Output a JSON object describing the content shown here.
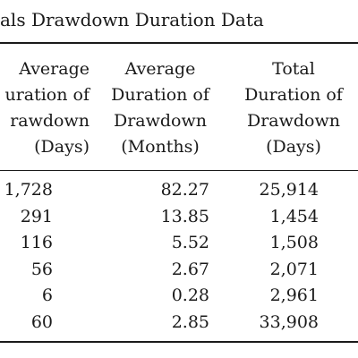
{
  "title": "als Drawdown Duration Data",
  "headers": [
    [
      "Average",
      "uration of",
      "rawdown",
      "(Days)"
    ],
    [
      "Average",
      "Duration of",
      "Drawdown",
      "(Months)"
    ],
    [
      "Total",
      "Duration of",
      "Drawdown",
      "(Days)"
    ]
  ],
  "rows": [
    [
      "1,728",
      "82.27",
      "25,914"
    ],
    [
      "291",
      "13.85",
      "1,454"
    ],
    [
      "116",
      "5.52",
      "1,508"
    ],
    [
      "56",
      "2.67",
      "2,071"
    ],
    [
      "6",
      "0.28",
      "2,961"
    ],
    [
      "60",
      "2.85",
      "33,908"
    ]
  ]
}
